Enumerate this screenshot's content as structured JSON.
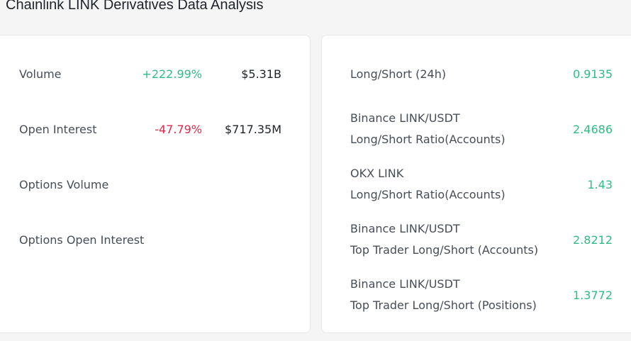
{
  "title": "Chainlink LINK Derivatives Data Analysis",
  "left_panel": {
    "rows": [
      {
        "label": "Volume",
        "change": "+222.99%",
        "amount": "$5.31B"
      },
      {
        "label": "Open Interest",
        "change": "-47.79%",
        "amount": "$717.35M"
      },
      {
        "label": "Options Volume",
        "change": "",
        "amount": ""
      },
      {
        "label": "Options Open Interest",
        "change": "",
        "amount": ""
      }
    ]
  },
  "right_panel": {
    "rows": [
      {
        "line1": "Long/Short (24h)",
        "line2": "",
        "value": "0.9135"
      },
      {
        "line1": "Binance LINK/USDT",
        "line2": "Long/Short Ratio(Accounts)",
        "value": "2.4686"
      },
      {
        "line1": "OKX LINK",
        "line2": "Long/Short Ratio(Accounts)",
        "value": "1.43"
      },
      {
        "line1": "Binance LINK/USDT",
        "line2": "Top Trader Long/Short (Accounts)",
        "value": "2.8212"
      },
      {
        "line1": "Binance LINK/USDT",
        "line2": "Top Trader Long/Short (Positions)",
        "value": "1.3772"
      }
    ]
  },
  "colors": {
    "positive": "#2ebd85",
    "negative": "#e0294a"
  }
}
